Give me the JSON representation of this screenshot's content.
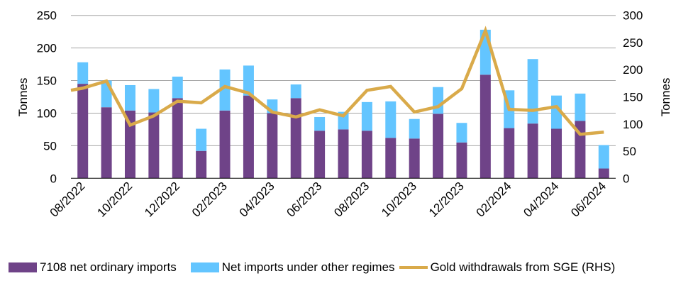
{
  "chart_data": {
    "type": "bar",
    "stacked": true,
    "categories": [
      "08/2022",
      "09/2022",
      "10/2022",
      "11/2022",
      "12/2022",
      "01/2023",
      "02/2023",
      "03/2023",
      "04/2023",
      "05/2023",
      "06/2023",
      "07/2023",
      "08/2023",
      "09/2023",
      "10/2023",
      "11/2023",
      "12/2023",
      "01/2024",
      "02/2024",
      "03/2024",
      "04/2024",
      "05/2024",
      "06/2024"
    ],
    "tick_labels": [
      "08/2022",
      "10/2022",
      "12/2022",
      "02/2023",
      "04/2023",
      "06/2023",
      "08/2023",
      "10/2023",
      "12/2023",
      "02/2024",
      "04/2024",
      "06/2024"
    ],
    "ylabel": "Tonnes",
    "y2label": "Tonnes",
    "ylim": [
      0,
      250
    ],
    "y2lim": [
      0,
      300
    ],
    "yticks": [
      0,
      50,
      100,
      150,
      200,
      250
    ],
    "y2ticks": [
      0,
      50,
      100,
      150,
      200,
      250,
      300
    ],
    "grid": true,
    "legend_position": "bottom",
    "series": [
      {
        "name": "7108 net ordinary imports",
        "type": "bar",
        "axis": "left",
        "color": "#6f4388",
        "values": [
          145,
          109,
          104,
          101,
          123,
          42,
          104,
          127,
          100,
          123,
          73,
          75,
          73,
          62,
          61,
          99,
          55,
          159,
          77,
          84,
          76,
          88,
          15
        ]
      },
      {
        "name": "Net imports under other regimes",
        "type": "bar",
        "axis": "left",
        "color": "#63c5ff",
        "values": [
          33,
          41,
          39,
          36,
          33,
          34,
          63,
          46,
          21,
          21,
          21,
          27,
          44,
          56,
          30,
          41,
          30,
          69,
          58,
          99,
          51,
          42,
          36
        ]
      },
      {
        "name": "Gold withdrawals from SGE (RHS)",
        "type": "line",
        "axis": "right",
        "color": "#d9aa4a",
        "values": [
          166,
          179,
          98,
          115,
          142,
          139,
          169,
          157,
          122,
          113,
          126,
          115,
          162,
          169,
          122,
          132,
          165,
          272,
          127,
          125,
          132,
          81,
          85
        ]
      }
    ]
  }
}
